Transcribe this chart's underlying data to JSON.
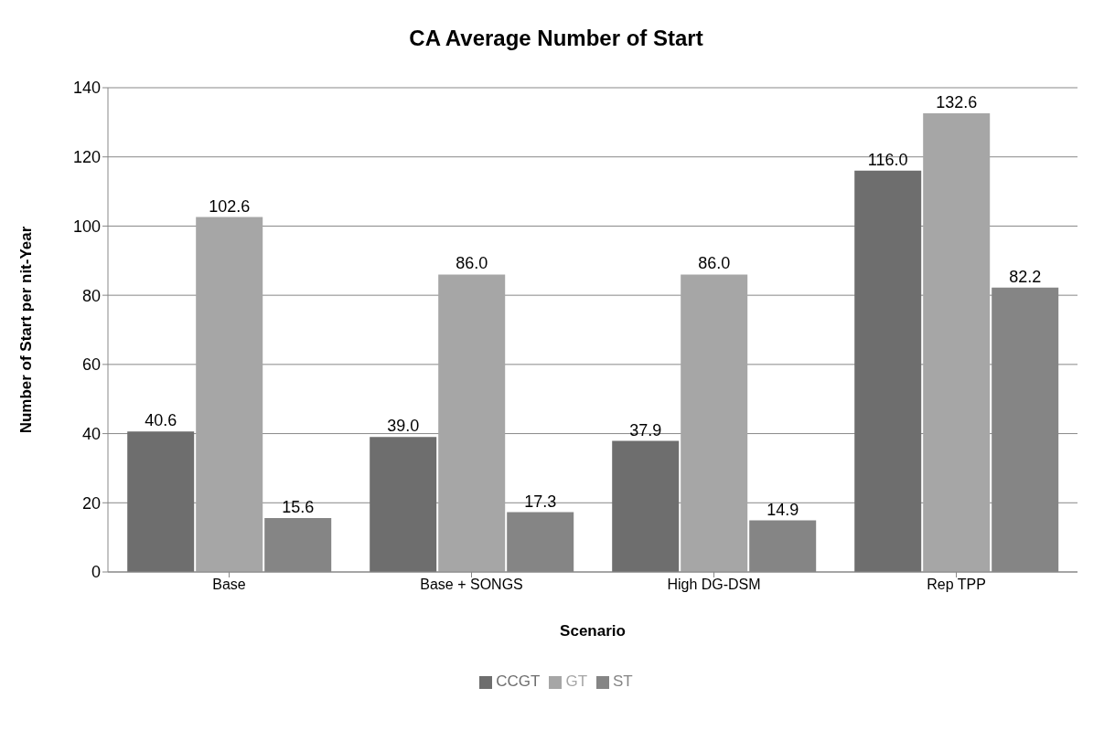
{
  "chart_data": {
    "type": "bar",
    "title": "CA Average Number of Start",
    "xlabel": "Scenario",
    "ylabel": "Number of Start per nit-Year",
    "categories": [
      "Base",
      "Base + SONGS",
      "High DG-DSM",
      "Rep TPP"
    ],
    "series": [
      {
        "name": "CCGT",
        "color": "#6e6e6e",
        "values": [
          40.6,
          39.0,
          37.9,
          116.0
        ],
        "value_labels": [
          "40.6",
          "39.0",
          "37.9",
          "116.0"
        ]
      },
      {
        "name": "GT",
        "color": "#a6a6a6",
        "values": [
          102.6,
          86.0,
          86.0,
          132.6
        ],
        "value_labels": [
          "102.6",
          "86.0",
          "86.0",
          "132.6"
        ]
      },
      {
        "name": "ST",
        "color": "#858585",
        "values": [
          15.6,
          17.3,
          14.9,
          82.2
        ],
        "value_labels": [
          "15.6",
          "17.3",
          "14.9",
          "82.2"
        ]
      }
    ],
    "ylim": [
      0,
      140
    ],
    "yticks": [
      0,
      20,
      40,
      60,
      80,
      100,
      120,
      140
    ],
    "grid": "y",
    "legend": "bottom"
  }
}
